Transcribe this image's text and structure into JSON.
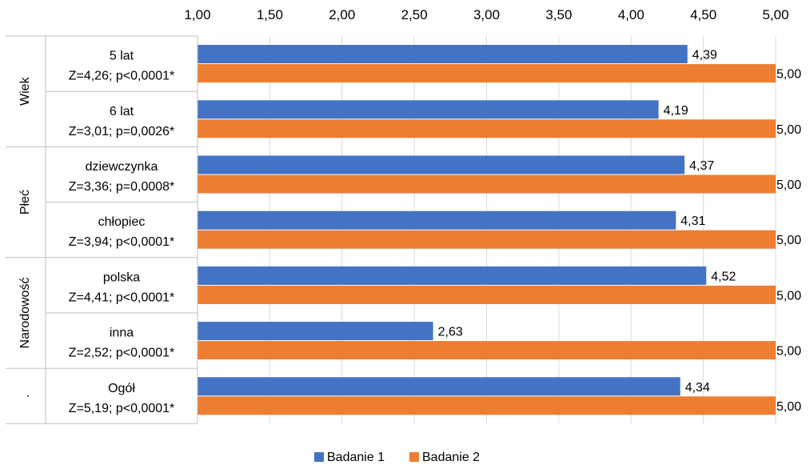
{
  "chart_data": {
    "type": "bar",
    "orientation": "horizontal",
    "xlim": [
      1,
      5
    ],
    "x_ticks": [
      "1,00",
      "1,50",
      "2,00",
      "2,50",
      "3,00",
      "3,50",
      "4,00",
      "4,50",
      "5,00"
    ],
    "x_tick_values": [
      1,
      1.5,
      2,
      2.5,
      3,
      3.5,
      4,
      4.5,
      5
    ],
    "grid": true,
    "legend_position": "bottom",
    "groups": [
      {
        "label": "Wiek",
        "categories": [
          0,
          1
        ]
      },
      {
        "label": "Płeć",
        "categories": [
          2,
          3
        ]
      },
      {
        "label": "Narodowość",
        "categories": [
          4,
          5
        ]
      },
      {
        "label": ".",
        "categories": [
          6
        ]
      }
    ],
    "categories": [
      {
        "name": "5 lat",
        "stat": "Z=4,26; p<0,0001*"
      },
      {
        "name": "6 lat",
        "stat": "Z=3,01; p=0,0026*"
      },
      {
        "name": "dziewczynka",
        "stat": "Z=3,36; p=0,0008*"
      },
      {
        "name": "chłopiec",
        "stat": "Z=3,94; p<0,0001*"
      },
      {
        "name": "polska",
        "stat": "Z=4,41; p<0,0001*"
      },
      {
        "name": "inna",
        "stat": "Z=2,52; p<0,0001*"
      },
      {
        "name": "Ogół",
        "stat": "Z=5,19; p<0,0001*"
      }
    ],
    "series": [
      {
        "name": "Badanie 1",
        "color": "#4472C4",
        "values": [
          4.39,
          4.19,
          4.37,
          4.31,
          4.52,
          2.63,
          4.34
        ],
        "labels": [
          "4,39",
          "4,19",
          "4,37",
          "4,31",
          "4,52",
          "2,63",
          "4,34"
        ]
      },
      {
        "name": "Badanie 2",
        "color": "#ED7D31",
        "values": [
          5.0,
          5.0,
          5.0,
          5.0,
          5.0,
          5.0,
          5.0
        ],
        "labels": [
          "5,00",
          "5,00",
          "5,00",
          "5,00",
          "5,00",
          "5,00",
          "5,00"
        ]
      }
    ]
  }
}
